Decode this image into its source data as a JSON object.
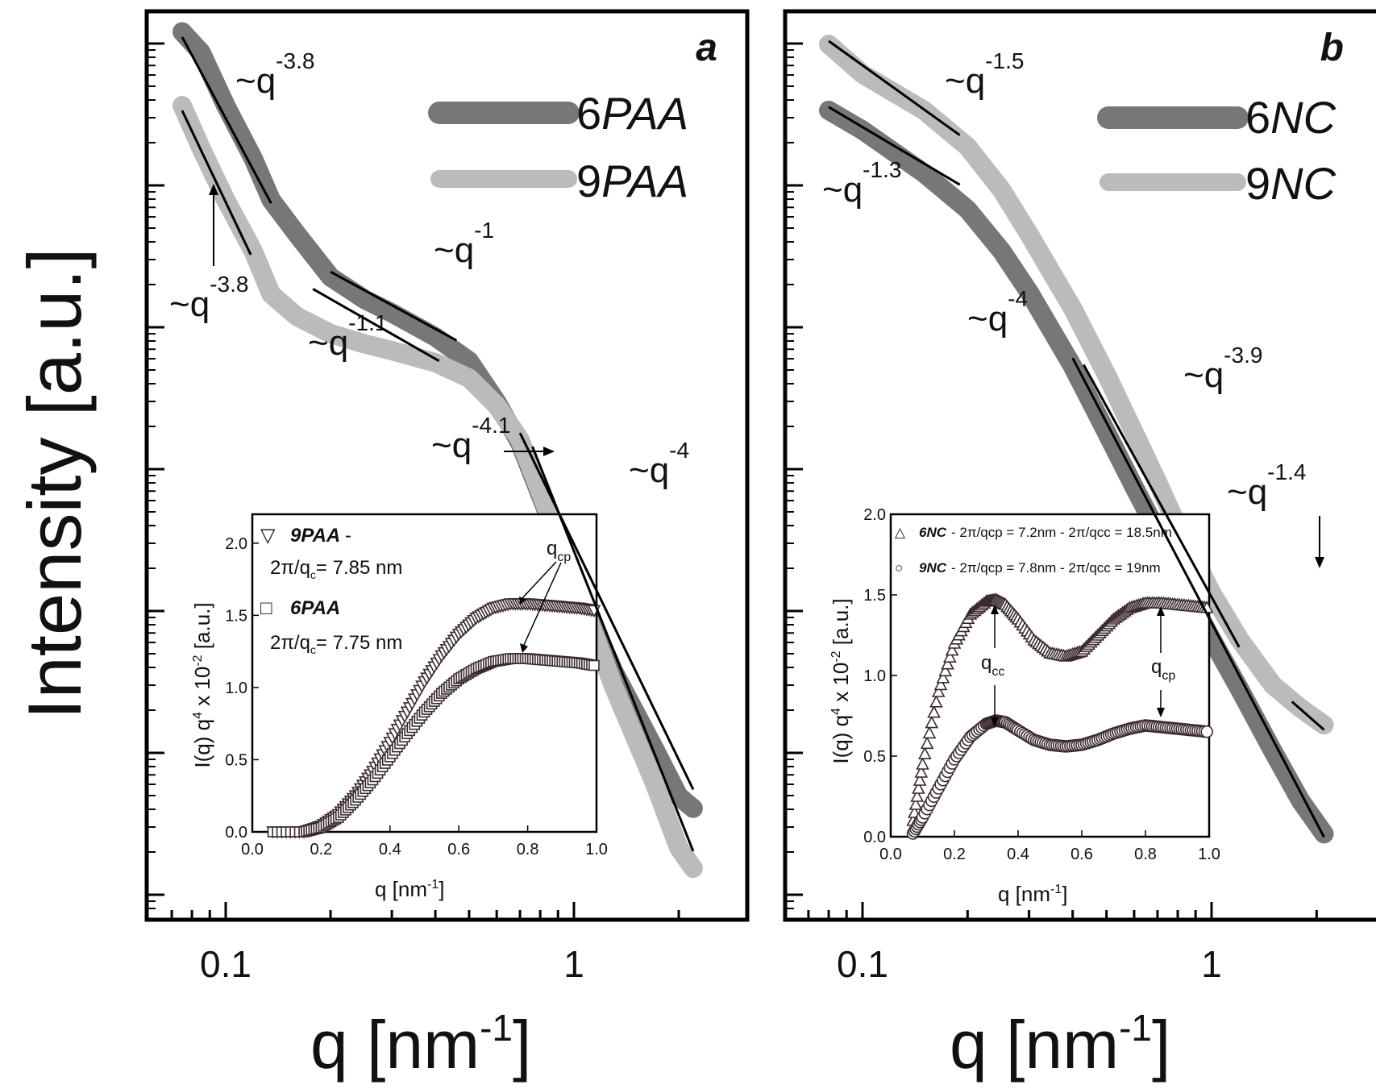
{
  "figure": {
    "ylabel": "Intensity [a.u.]",
    "xlabel_main": "q [nm",
    "xlabel_sup": "-1",
    "xlabel_close": "]"
  },
  "chart_data": [
    {
      "panel": "a",
      "type": "line",
      "xscale": "log",
      "yscale": "log",
      "xlim": [
        0.07,
        2.4
      ],
      "xticks": [
        0.1,
        1
      ],
      "xticklabels": [
        "0.1",
        "1"
      ],
      "xlabel": "q [nm-1]",
      "ylabel": "Intensity [a.u.]",
      "legend_position": "top-right",
      "series": [
        {
          "name": "6PAA",
          "color": "#777777",
          "x": [
            0.075,
            0.085,
            0.1,
            0.12,
            0.135,
            0.16,
            0.2,
            0.25,
            0.3,
            0.4,
            0.5,
            0.6,
            0.7,
            0.8,
            1.0,
            1.3,
            1.7,
            2.0,
            2.2
          ],
          "y": [
            11.38,
            11.26,
            10.95,
            10.64,
            10.4,
            10.2,
            9.95,
            9.82,
            9.74,
            9.6,
            9.46,
            9.22,
            8.98,
            8.68,
            8.18,
            7.65,
            7.2,
            6.92,
            6.85
          ]
        },
        {
          "name": "9PAA",
          "color": "#bbbbbb",
          "x": [
            0.075,
            0.085,
            0.1,
            0.12,
            0.135,
            0.16,
            0.2,
            0.25,
            0.3,
            0.4,
            0.5,
            0.6,
            0.7,
            0.8,
            1.0,
            1.3,
            1.7,
            2.0,
            2.2
          ],
          "y": [
            10.95,
            10.7,
            10.4,
            10.1,
            9.85,
            9.72,
            9.62,
            9.56,
            9.52,
            9.45,
            9.36,
            9.2,
            9.0,
            8.7,
            8.18,
            7.56,
            7.0,
            6.62,
            6.5
          ]
        }
      ],
      "fit_lines": [
        {
          "x": [
            0.075,
            0.135
          ],
          "y": [
            11.35,
            10.38
          ]
        },
        {
          "x": [
            0.075,
            0.118
          ],
          "y": [
            10.92,
            10.08
          ]
        },
        {
          "x": [
            0.2,
            0.46
          ],
          "y": [
            9.98,
            9.58
          ]
        },
        {
          "x": [
            0.178,
            0.41
          ],
          "y": [
            9.88,
            9.46
          ]
        },
        {
          "x": [
            0.7,
            2.2
          ],
          "y": [
            9.04,
            6.96
          ]
        },
        {
          "x": [
            0.76,
            2.2
          ],
          "y": [
            8.96,
            6.6
          ]
        }
      ],
      "annotations": [
        {
          "base": "~q",
          "exponent": "-3.8"
        },
        {
          "base": "~q",
          "exponent": "-3.8"
        },
        {
          "base": "~q",
          "exponent": "-1"
        },
        {
          "base": "~q",
          "exponent": "-1.1"
        },
        {
          "base": "~q",
          "exponent": "-4.1"
        },
        {
          "base": "~q",
          "exponent": "-4"
        }
      ],
      "inset": {
        "type": "scatter",
        "xlim": [
          0.0,
          1.0
        ],
        "ylim": [
          0.0,
          2.2
        ],
        "xticklabels": [
          "0.0",
          "0.2",
          "0.4",
          "0.6",
          "0.8",
          "1.0"
        ],
        "yticklabels": [
          "0.0",
          "0.5",
          "1.0",
          "1.5",
          "2.0"
        ],
        "xlabel": "q [nm-1]",
        "ylabel": "I(q) q4 x 10-2 [a.u.]",
        "legend": [
          {
            "name": "9PAA",
            "marker": "▽",
            "detail_main": "2π/q",
            "detail_sub": "c",
            "detail_rest": "= 7.85 nm"
          },
          {
            "name": "6PAA",
            "marker": "□",
            "detail_main": "2π/q",
            "detail_sub": "c",
            "detail_rest": "= 7.75 nm"
          }
        ],
        "peak_label": {
          "main": "q",
          "sub": "cp"
        },
        "series": [
          {
            "name": "9PAA",
            "x": [
              0.06,
              0.15,
              0.2,
              0.25,
              0.3,
              0.35,
              0.4,
              0.45,
              0.5,
              0.55,
              0.6,
              0.65,
              0.7,
              0.75,
              0.8,
              0.85,
              0.9,
              0.95,
              1.0
            ],
            "y": [
              0.0,
              0.0,
              0.04,
              0.12,
              0.25,
              0.42,
              0.62,
              0.83,
              1.04,
              1.22,
              1.37,
              1.48,
              1.55,
              1.58,
              1.58,
              1.57,
              1.56,
              1.55,
              1.53
            ]
          },
          {
            "name": "6PAA",
            "x": [
              0.06,
              0.15,
              0.2,
              0.25,
              0.3,
              0.35,
              0.4,
              0.45,
              0.5,
              0.55,
              0.6,
              0.65,
              0.7,
              0.75,
              0.8,
              0.85,
              0.9,
              0.95,
              1.0
            ],
            "y": [
              0.0,
              0.0,
              0.03,
              0.1,
              0.22,
              0.36,
              0.52,
              0.68,
              0.83,
              0.96,
              1.06,
              1.13,
              1.18,
              1.2,
              1.2,
              1.19,
              1.18,
              1.17,
              1.15
            ]
          }
        ]
      }
    },
    {
      "panel": "b",
      "type": "line",
      "xscale": "log",
      "yscale": "log",
      "xlim": [
        0.07,
        2.4
      ],
      "xticks": [
        0.1,
        1
      ],
      "xticklabels": [
        "0.1",
        "1"
      ],
      "xlabel": "q [nm-1]",
      "legend_position": "top-right",
      "series": [
        {
          "name": "6NC",
          "color": "#777777",
          "x": [
            0.08,
            0.1,
            0.15,
            0.2,
            0.25,
            0.3,
            0.4,
            0.5,
            0.6,
            0.7,
            0.8,
            1.0,
            1.2,
            1.5,
            1.8,
            2.1
          ],
          "y": [
            11.1,
            10.98,
            10.72,
            10.5,
            10.25,
            10.0,
            9.55,
            9.15,
            8.82,
            8.55,
            8.28,
            7.9,
            7.6,
            7.22,
            6.92,
            6.72
          ]
        },
        {
          "name": "9NC",
          "color": "#bbbbbb",
          "x": [
            0.08,
            0.1,
            0.15,
            0.2,
            0.25,
            0.3,
            0.4,
            0.5,
            0.6,
            0.7,
            0.8,
            1.0,
            1.2,
            1.5,
            1.8,
            2.1
          ],
          "y": [
            11.5,
            11.32,
            11.1,
            10.88,
            10.62,
            10.35,
            9.9,
            9.5,
            9.15,
            8.85,
            8.58,
            8.18,
            7.9,
            7.62,
            7.48,
            7.38
          ]
        }
      ],
      "fit_lines": [
        {
          "x": [
            0.08,
            0.19
          ],
          "y": [
            11.12,
            10.65
          ]
        },
        {
          "x": [
            0.08,
            0.19
          ],
          "y": [
            11.52,
            10.95
          ]
        },
        {
          "x": [
            0.4,
            2.1
          ],
          "y": [
            9.6,
            6.7
          ]
        },
        {
          "x": [
            0.43,
            1.2
          ],
          "y": [
            9.56,
            7.85
          ]
        },
        {
          "x": [
            1.7,
            2.1
          ],
          "y": [
            7.52,
            7.35
          ]
        }
      ],
      "annotations": [
        {
          "base": "~q",
          "exponent": "-1.5"
        },
        {
          "base": "~q",
          "exponent": "-1.3"
        },
        {
          "base": "~q",
          "exponent": "-4"
        },
        {
          "base": "~q",
          "exponent": "-3.9"
        },
        {
          "base": "~q",
          "exponent": "-1.4"
        }
      ],
      "inset": {
        "type": "scatter",
        "xlim": [
          0.0,
          1.0
        ],
        "ylim": [
          0.0,
          2.0
        ],
        "xticklabels": [
          "0.0",
          "0.2",
          "0.4",
          "0.6",
          "0.8",
          "1.0"
        ],
        "yticklabels": [
          "0.0",
          "0.5",
          "1.0",
          "1.5",
          "2.0"
        ],
        "xlabel": "q [nm-1]",
        "ylabel": "I(q) q4 x 10-2 [a.u.]",
        "legend": [
          {
            "name": "6NC",
            "marker": "△",
            "detail": "- 2π/qcp = 7.2nm - 2π/qcc = 18.5nm"
          },
          {
            "name": "9NC",
            "marker": "○",
            "detail": "- 2π/qcp = 7.8nm - 2π/qcc = 19nm"
          }
        ],
        "peak_labels": [
          {
            "main": "q",
            "sub": "cc"
          },
          {
            "main": "q",
            "sub": "cp"
          }
        ],
        "series": [
          {
            "name": "6NC",
            "x": [
              0.07,
              0.1,
              0.15,
              0.2,
              0.25,
              0.3,
              0.33,
              0.36,
              0.4,
              0.45,
              0.5,
              0.55,
              0.6,
              0.65,
              0.7,
              0.75,
              0.8,
              0.85,
              0.9,
              0.95,
              1.0
            ],
            "y": [
              0.1,
              0.45,
              0.9,
              1.2,
              1.38,
              1.46,
              1.47,
              1.44,
              1.35,
              1.22,
              1.14,
              1.12,
              1.15,
              1.25,
              1.35,
              1.42,
              1.45,
              1.45,
              1.44,
              1.43,
              1.42
            ]
          },
          {
            "name": "9NC",
            "x": [
              0.07,
              0.1,
              0.15,
              0.2,
              0.25,
              0.3,
              0.33,
              0.36,
              0.4,
              0.45,
              0.5,
              0.55,
              0.6,
              0.65,
              0.7,
              0.75,
              0.8,
              0.85,
              0.9,
              0.95,
              1.0
            ],
            "y": [
              0.02,
              0.12,
              0.3,
              0.48,
              0.62,
              0.7,
              0.72,
              0.71,
              0.66,
              0.6,
              0.57,
              0.56,
              0.57,
              0.6,
              0.64,
              0.67,
              0.69,
              0.68,
              0.67,
              0.66,
              0.65
            ]
          }
        ]
      }
    }
  ]
}
